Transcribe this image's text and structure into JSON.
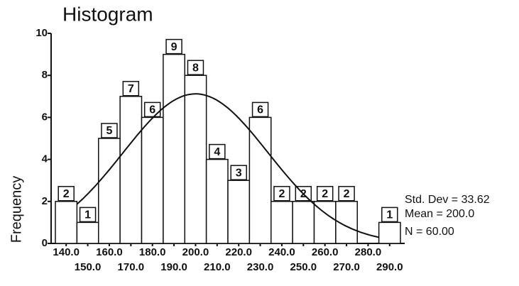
{
  "chart_data": {
    "type": "histogram",
    "title": "Histogram",
    "y_label": "Frequency",
    "bins": [
      135,
      145,
      155,
      165,
      175,
      185,
      195,
      205,
      215,
      225,
      235,
      245,
      255,
      265,
      275,
      285,
      295
    ],
    "values": [
      2,
      1,
      5,
      7,
      6,
      9,
      8,
      4,
      3,
      6,
      2,
      2,
      2,
      2,
      0,
      1
    ],
    "value_labels": [
      "2",
      "1",
      "5",
      "7",
      "6",
      "9",
      "8",
      "4",
      "3",
      "6",
      "2",
      "2",
      "2",
      "2",
      null,
      "1"
    ],
    "xlim": [
      135,
      295
    ],
    "xticks": [
      {
        "value": 140,
        "label": "140.0"
      },
      {
        "value": 150,
        "label": "150.0"
      },
      {
        "value": 160,
        "label": "160.0"
      },
      {
        "value": 170,
        "label": "170.0"
      },
      {
        "value": 180,
        "label": "180.0"
      },
      {
        "value": 190,
        "label": "190.0"
      },
      {
        "value": 200,
        "label": "200.0"
      },
      {
        "value": 210,
        "label": "210.0"
      },
      {
        "value": 220,
        "label": "220.0"
      },
      {
        "value": 230,
        "label": "230.0"
      },
      {
        "value": 240,
        "label": "240.0"
      },
      {
        "value": 250,
        "label": "250.0"
      },
      {
        "value": 260,
        "label": "260.0"
      },
      {
        "value": 270,
        "label": "270.0"
      },
      {
        "value": 280,
        "label": "280.0"
      },
      {
        "value": 290,
        "label": "290.0"
      }
    ],
    "ylim": [
      0,
      10
    ],
    "yticks": [
      0,
      2,
      4,
      6,
      8,
      10
    ],
    "stats": [
      {
        "label": "Std. Dev = 33.62",
        "value": 33.62
      },
      {
        "label": "Mean = 200.0",
        "value": 200
      },
      {
        "label": "N = 60.00",
        "value": 60
      }
    ],
    "normal_curve": true,
    "color": "#ffffff"
  }
}
